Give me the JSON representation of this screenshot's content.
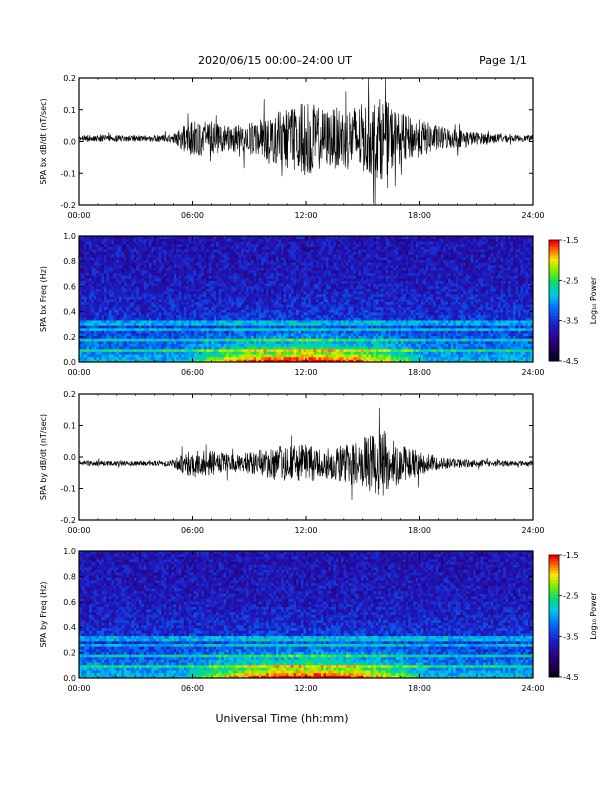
{
  "header": {
    "title": "2020/06/15  00:00–24:00 UT",
    "page": "Page 1/1"
  },
  "x_axis_label": "Universal Time (hh:mm)",
  "colorbar_label": "Log₁₀ Power",
  "chart_data": [
    {
      "type": "line",
      "ylabel": "SPA bx dB/dt (nT/sec)",
      "xlim": [
        "00:00",
        "24:00"
      ],
      "ylim": [
        -0.2,
        0.2
      ],
      "x_ticks": [
        "00:00",
        "06:00",
        "12:00",
        "18:00",
        "24:00"
      ],
      "y_ticks": [
        "-0.2",
        "-0.1",
        "0.0",
        "0.1",
        "0.2"
      ],
      "baseline": 0.01,
      "series": [
        {
          "x": [
            "00:00",
            "01:00",
            "02:00",
            "03:00",
            "04:00",
            "05:00",
            "05:30",
            "06:00",
            "07:00",
            "08:00",
            "09:00",
            "10:00",
            "11:00",
            "12:00",
            "13:00",
            "14:00",
            "15:00",
            "16:00",
            "17:00",
            "18:00",
            "19:00",
            "20:00",
            "21:00",
            "22:00",
            "23:00",
            "24:00"
          ],
          "amplitude": [
            0.01,
            0.01,
            0.01,
            0.01,
            0.01,
            0.015,
            0.04,
            0.06,
            0.05,
            0.04,
            0.05,
            0.07,
            0.1,
            0.12,
            0.09,
            0.1,
            0.11,
            0.13,
            0.08,
            0.06,
            0.04,
            0.03,
            0.02,
            0.015,
            0.01,
            0.01
          ]
        }
      ]
    },
    {
      "type": "heatmap",
      "ylabel": "SPA bx Freq (Hz)",
      "xlim": [
        "00:00",
        "24:00"
      ],
      "ylim": [
        0.0,
        1.0
      ],
      "x_ticks": [
        "00:00",
        "06:00",
        "12:00",
        "18:00",
        "24:00"
      ],
      "y_ticks": [
        "0.0",
        "0.2",
        "0.4",
        "0.6",
        "0.8",
        "1.0"
      ],
      "colorbar": {
        "label": "Log₁₀ Power",
        "range": [
          -4.5,
          -1.5
        ],
        "ticks": [
          "-1.5",
          "-2.5",
          "-3.5",
          "-4.5"
        ]
      },
      "bands_hz": [
        0.1,
        0.17,
        0.26,
        0.3,
        0.32
      ],
      "active_period": [
        "05:30",
        "18:30"
      ]
    },
    {
      "type": "line",
      "ylabel": "SPA by dB/dt (nT/sec)",
      "xlim": [
        "00:00",
        "24:00"
      ],
      "ylim": [
        -0.2,
        0.2
      ],
      "x_ticks": [
        "00:00",
        "06:00",
        "12:00",
        "18:00",
        "24:00"
      ],
      "y_ticks": [
        "-0.2",
        "-0.1",
        "0.0",
        "0.1",
        "0.2"
      ],
      "baseline": -0.02,
      "series": [
        {
          "x": [
            "00:00",
            "01:00",
            "02:00",
            "03:00",
            "04:00",
            "05:00",
            "05:30",
            "06:00",
            "07:00",
            "08:00",
            "09:00",
            "10:00",
            "11:00",
            "12:00",
            "13:00",
            "14:00",
            "15:00",
            "16:00",
            "17:00",
            "18:00",
            "19:00",
            "20:00",
            "21:00",
            "22:00",
            "23:00",
            "24:00"
          ],
          "amplitude": [
            0.008,
            0.008,
            0.008,
            0.008,
            0.008,
            0.012,
            0.04,
            0.05,
            0.04,
            0.03,
            0.035,
            0.05,
            0.06,
            0.06,
            0.05,
            0.06,
            0.08,
            0.11,
            0.06,
            0.04,
            0.02,
            0.015,
            0.012,
            0.01,
            0.008,
            0.008
          ]
        }
      ]
    },
    {
      "type": "heatmap",
      "ylabel": "SPA by Freq (Hz)",
      "xlim": [
        "00:00",
        "24:00"
      ],
      "ylim": [
        0.0,
        1.0
      ],
      "x_ticks": [
        "00:00",
        "06:00",
        "12:00",
        "18:00",
        "24:00"
      ],
      "y_ticks": [
        "0.0",
        "0.2",
        "0.4",
        "0.6",
        "0.8",
        "1.0"
      ],
      "colorbar": {
        "label": "Log₁₀ Power",
        "range": [
          -4.5,
          -1.5
        ],
        "ticks": [
          "-1.5",
          "-2.5",
          "-3.5",
          "-4.5"
        ]
      },
      "bands_hz": [
        0.1,
        0.17,
        0.26,
        0.3,
        0.32
      ],
      "active_period": [
        "05:30",
        "18:30"
      ]
    }
  ]
}
